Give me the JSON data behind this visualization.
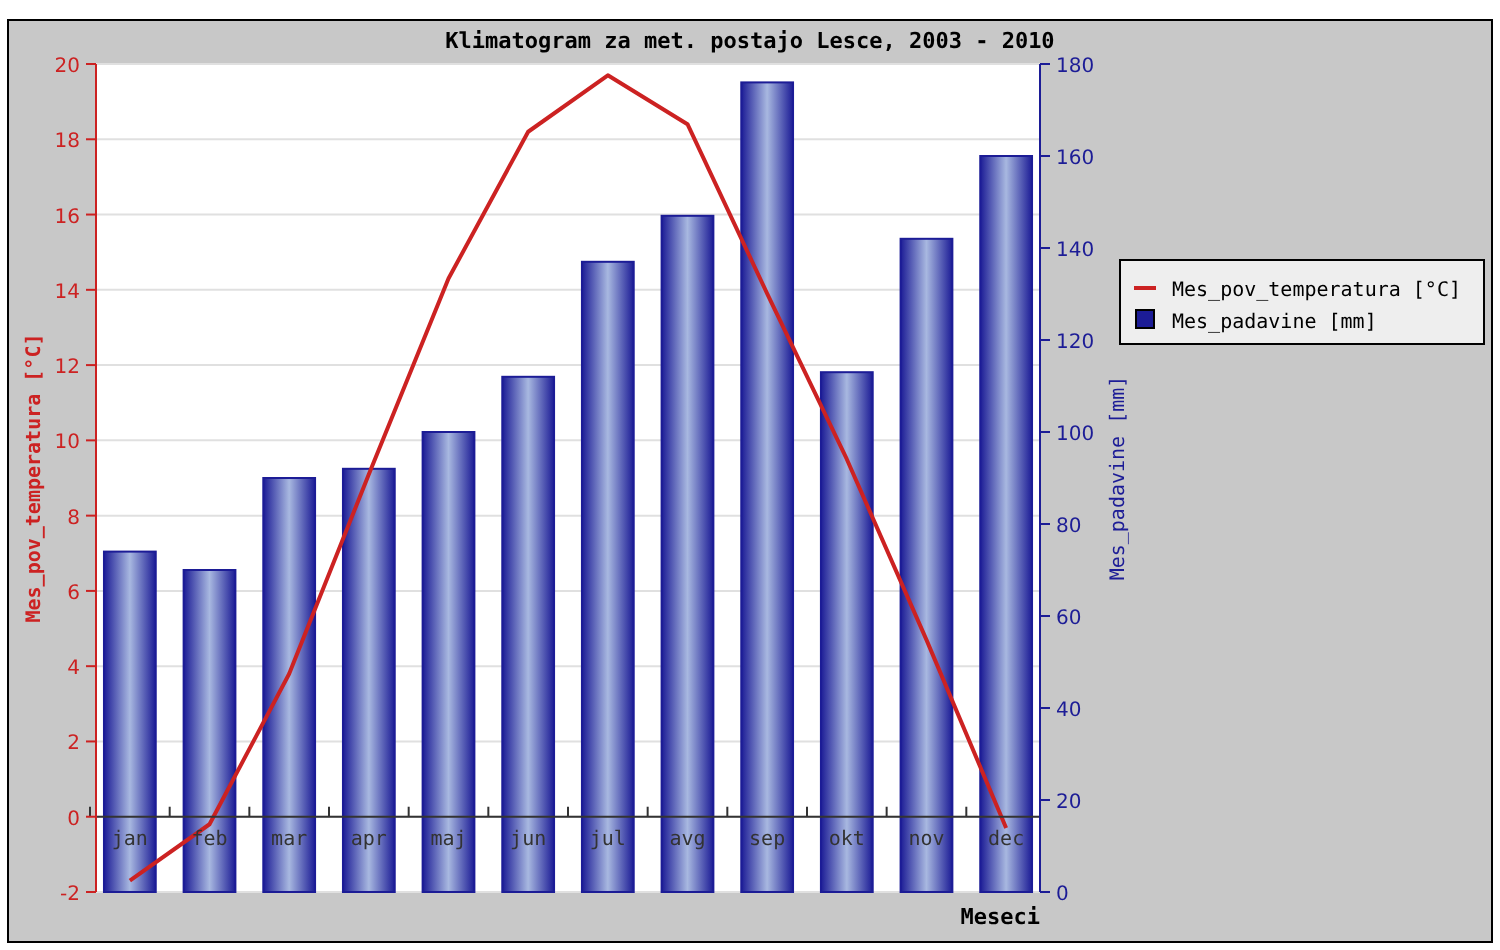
{
  "chart_data": {
    "type": "bar",
    "title": "Klimatogram za met. postajo Lesce, 2003 - 2010",
    "xlabel": "Meseci",
    "ylabel": "Mes_pov_temperatura [°C]",
    "y2label": "Mes_padavine [mm]",
    "categories": [
      "jan",
      "feb",
      "mar",
      "apr",
      "maj",
      "jun",
      "jul",
      "avg",
      "sep",
      "okt",
      "nov",
      "dec"
    ],
    "series": [
      {
        "name": "Mes_pov_temperatura [°C]",
        "type": "line",
        "color": "#cc2222",
        "values": [
          -1.7,
          -0.2,
          3.8,
          9.1,
          14.3,
          18.2,
          19.7,
          18.4,
          13.9,
          9.5,
          4.7,
          -0.3
        ]
      },
      {
        "name": "Mes_padavine [mm]",
        "type": "bar",
        "axis": "y2",
        "color": "#1c1c96",
        "values": [
          74,
          70,
          90,
          92,
          100,
          112,
          137,
          147,
          176,
          113,
          142,
          160
        ]
      }
    ],
    "ylim": [
      -2,
      20
    ],
    "yticks": [
      -2,
      0,
      2,
      4,
      6,
      8,
      10,
      12,
      14,
      16,
      18,
      20
    ],
    "y2lim": [
      0,
      180
    ],
    "y2ticks": [
      0,
      20,
      40,
      60,
      80,
      100,
      120,
      140,
      160,
      180
    ],
    "grid": "y",
    "legend": "right",
    "marker": "none",
    "line_style": "solid"
  }
}
